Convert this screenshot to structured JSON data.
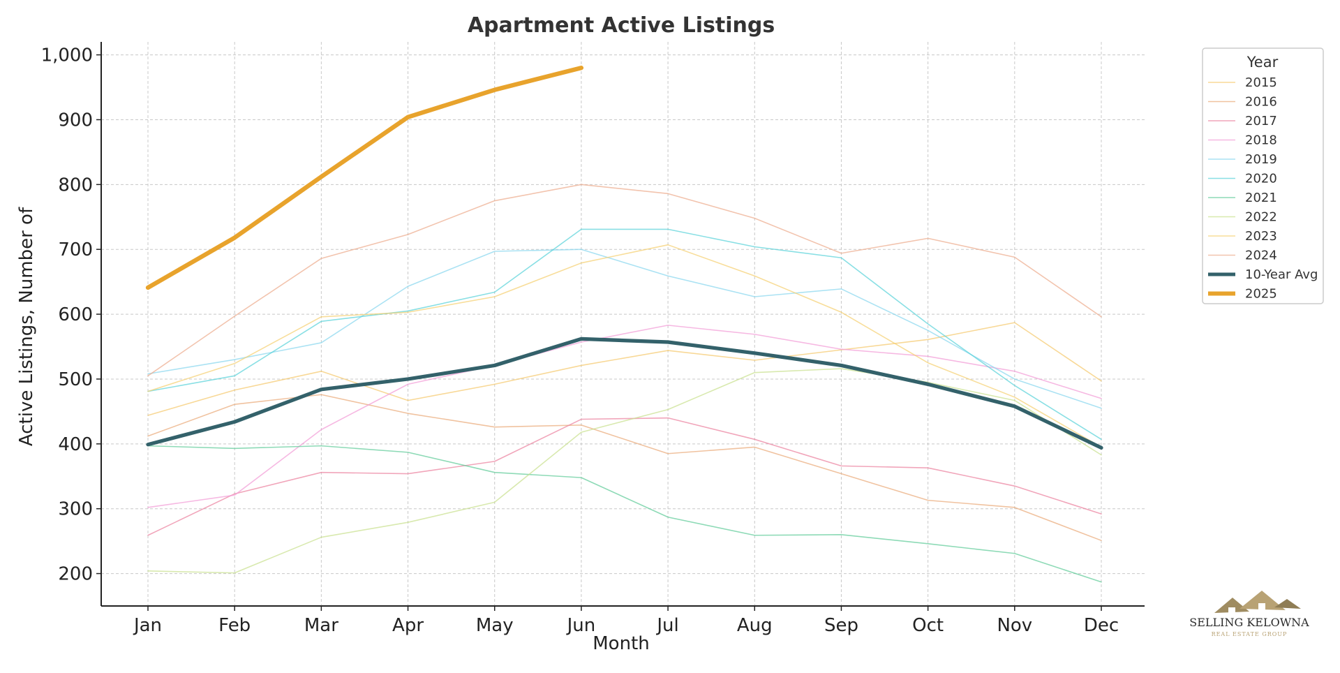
{
  "chart_data": {
    "type": "line",
    "title": "Apartment Active Listings",
    "xlabel": "Month",
    "ylabel": "Active Listings, Number of",
    "categories": [
      "Jan",
      "Feb",
      "Mar",
      "Apr",
      "May",
      "Jun",
      "Jul",
      "Aug",
      "Sep",
      "Oct",
      "Nov",
      "Dec"
    ],
    "ylim": [
      150,
      1020
    ],
    "yticks": [
      200,
      300,
      400,
      500,
      600,
      700,
      800,
      900,
      1000
    ],
    "ytick_labels": [
      "200",
      "300",
      "400",
      "500",
      "600",
      "700",
      "800",
      "900",
      "1,000"
    ],
    "grid": true,
    "legend": {
      "title": "Year",
      "placement": "outside-right-top"
    },
    "series": [
      {
        "name": "2015",
        "color": "#f5c86a",
        "width": 1.5,
        "opacity": 0.7,
        "values": [
          444,
          483,
          512,
          467,
          492,
          521,
          544,
          529,
          545,
          561,
          587,
          497
        ]
      },
      {
        "name": "2016",
        "color": "#eaa876",
        "width": 1.5,
        "opacity": 0.7,
        "values": [
          412,
          461,
          476,
          447,
          426,
          429,
          385,
          395,
          354,
          313,
          302,
          251
        ]
      },
      {
        "name": "2017",
        "color": "#eb7f9c",
        "width": 1.5,
        "opacity": 0.7,
        "values": [
          259,
          323,
          356,
          354,
          373,
          438,
          440,
          407,
          366,
          363,
          335,
          292
        ]
      },
      {
        "name": "2018",
        "color": "#f29ad6",
        "width": 1.5,
        "opacity": 0.7,
        "values": [
          302,
          321,
          422,
          492,
          521,
          557,
          583,
          569,
          546,
          535,
          512,
          470
        ]
      },
      {
        "name": "2019",
        "color": "#86d6ee",
        "width": 1.5,
        "opacity": 0.7,
        "values": [
          508,
          530,
          556,
          643,
          697,
          700,
          659,
          627,
          639,
          575,
          500,
          455
        ]
      },
      {
        "name": "2020",
        "color": "#55d2d9",
        "width": 1.5,
        "opacity": 0.7,
        "values": [
          481,
          505,
          589,
          605,
          634,
          731,
          731,
          704,
          687,
          585,
          490,
          407
        ]
      },
      {
        "name": "2021",
        "color": "#5ccb97",
        "width": 1.5,
        "opacity": 0.7,
        "values": [
          397,
          393,
          397,
          387,
          356,
          348,
          287,
          259,
          260,
          246,
          231,
          187
        ]
      },
      {
        "name": "2022",
        "color": "#c8e08c",
        "width": 1.5,
        "opacity": 0.7,
        "values": [
          204,
          201,
          256,
          279,
          310,
          418,
          453,
          510,
          516,
          495,
          467,
          383
        ]
      },
      {
        "name": "2023",
        "color": "#f5ce6e",
        "width": 1.5,
        "opacity": 0.7,
        "values": [
          481,
          524,
          596,
          603,
          627,
          679,
          707,
          659,
          603,
          525,
          472,
          395
        ]
      },
      {
        "name": "2024",
        "color": "#eda98a",
        "width": 1.5,
        "opacity": 0.7,
        "values": [
          505,
          597,
          686,
          723,
          775,
          800,
          786,
          748,
          694,
          717,
          688,
          596
        ]
      },
      {
        "name": "10-Year Avg",
        "color": "#33616a",
        "width": 5,
        "opacity": 1,
        "values": [
          399,
          434,
          484,
          500,
          521,
          562,
          557,
          540,
          521,
          492,
          458,
          394
        ]
      },
      {
        "name": "2025",
        "color": "#e8a32c",
        "width": 6,
        "opacity": 1,
        "values": [
          641,
          718,
          812,
          904,
          946,
          980,
          null,
          null,
          null,
          null,
          null,
          null
        ]
      }
    ]
  },
  "logo": {
    "primary_text": "SELLING KELOWNA",
    "secondary_text": "REAL ESTATE GROUP",
    "color_primary": "#2b2b2b",
    "color_accent": "#b8a274"
  }
}
